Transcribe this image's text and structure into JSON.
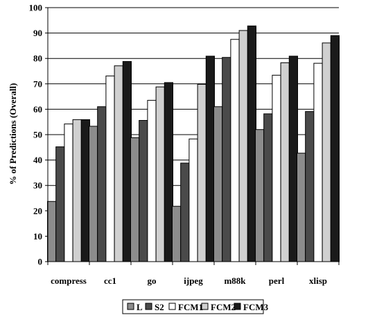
{
  "chart_data": {
    "type": "bar",
    "title": "",
    "xlabel": "",
    "ylabel": "% of Predictions (Overall)",
    "ylim": [
      0,
      100
    ],
    "yticks": [
      0,
      10,
      20,
      30,
      40,
      50,
      60,
      70,
      80,
      90,
      100
    ],
    "grid": true,
    "legend_position": "bottom",
    "categories": [
      "compress",
      "cc1",
      "go",
      "ijpeg",
      "m88k",
      "perl",
      "xlisp"
    ],
    "series": [
      {
        "name": "L",
        "color": "#8c8c8c",
        "values": [
          23.7,
          53.3,
          48.8,
          21.8,
          61.0,
          52.0,
          42.7
        ]
      },
      {
        "name": "S2",
        "color": "#4a4a4a",
        "values": [
          45.2,
          61.0,
          55.6,
          38.8,
          80.4,
          58.2,
          59.1
        ]
      },
      {
        "name": "FCM1",
        "color": "#ffffff",
        "values": [
          54.2,
          73.1,
          63.5,
          48.3,
          87.5,
          73.4,
          78.1
        ]
      },
      {
        "name": "FCM2",
        "color": "#d0d0d0",
        "values": [
          55.9,
          77.1,
          68.8,
          69.8,
          91.0,
          78.3,
          86.1
        ]
      },
      {
        "name": "FCM3",
        "color": "#1a1a1a",
        "values": [
          55.9,
          78.8,
          70.5,
          80.9,
          92.8,
          80.9,
          89.0
        ]
      }
    ]
  }
}
